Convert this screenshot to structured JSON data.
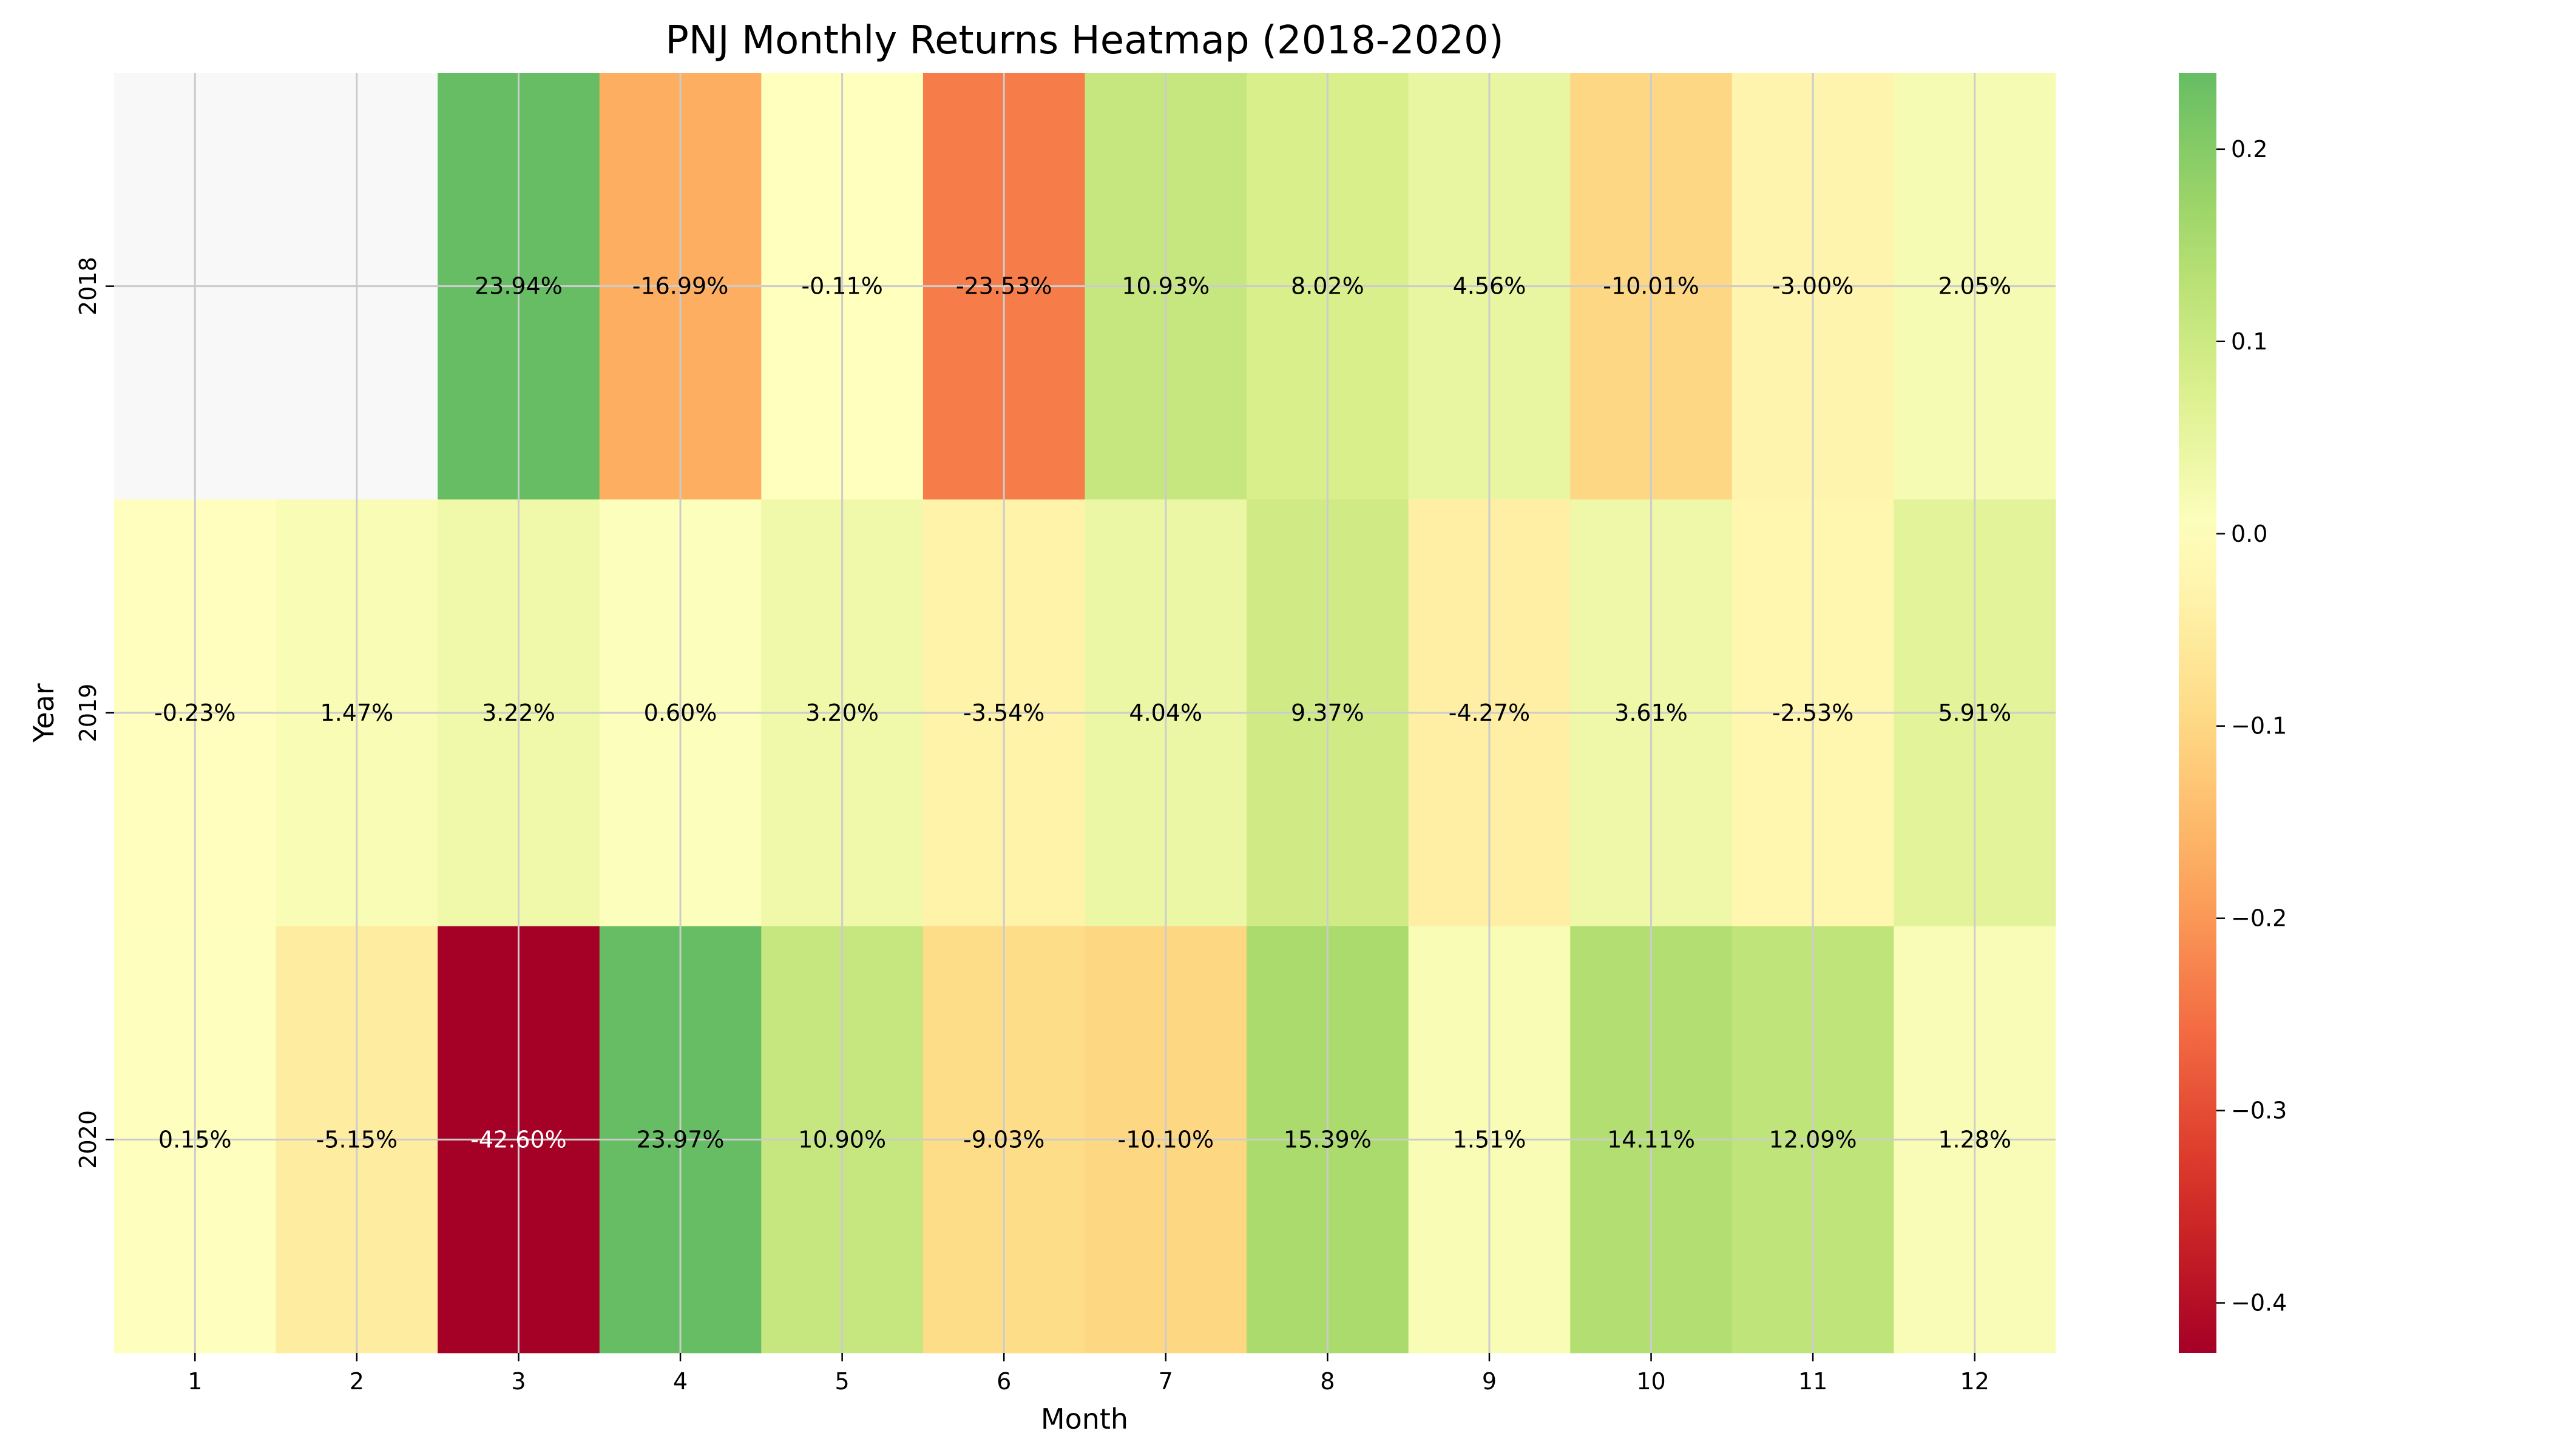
{
  "chart_data": {
    "type": "heatmap",
    "title": "PNJ Monthly Returns Heatmap (2018-2020)",
    "xlabel": "Month",
    "ylabel": "Year",
    "x_categories": [
      "1",
      "2",
      "3",
      "4",
      "5",
      "6",
      "7",
      "8",
      "9",
      "10",
      "11",
      "12"
    ],
    "y_categories": [
      "2018",
      "2019",
      "2020"
    ],
    "values": [
      [
        null,
        null,
        0.2394,
        -0.1699,
        -0.0011,
        -0.2353,
        0.1093,
        0.0802,
        0.0456,
        -0.1001,
        -0.03,
        0.0205
      ],
      [
        -0.0023,
        0.0147,
        0.0322,
        0.006,
        0.032,
        -0.0354,
        0.0404,
        0.0937,
        -0.0427,
        0.0361,
        -0.0253,
        0.0591
      ],
      [
        0.0015,
        -0.0515,
        -0.426,
        0.2397,
        0.109,
        -0.0903,
        -0.101,
        0.1539,
        0.0151,
        0.1411,
        0.1209,
        0.0128
      ]
    ],
    "annotations": [
      [
        "",
        "",
        "23.94%",
        "-16.99%",
        "-0.11%",
        "-23.53%",
        "10.93%",
        "8.02%",
        "4.56%",
        "-10.01%",
        "-3.00%",
        "2.05%"
      ],
      [
        "-0.23%",
        "1.47%",
        "3.22%",
        "0.60%",
        "3.20%",
        "-3.54%",
        "4.04%",
        "9.37%",
        "-4.27%",
        "3.61%",
        "-2.53%",
        "5.91%"
      ],
      [
        "0.15%",
        "-5.15%",
        "-42.60%",
        "23.97%",
        "10.90%",
        "-9.03%",
        "-10.10%",
        "15.39%",
        "1.51%",
        "14.11%",
        "12.09%",
        "1.28%"
      ]
    ],
    "colormap": "RdYlGn",
    "colorbar": {
      "vmin": -0.426,
      "vmax": 0.2397,
      "ticks": [
        0.2,
        0.1,
        0.0,
        -0.1,
        -0.2,
        -0.3,
        -0.4
      ],
      "tick_labels": [
        "0.2",
        "0.1",
        "0.0",
        "−0.1",
        "−0.2",
        "−0.3",
        "−0.4"
      ]
    },
    "grid": true,
    "missing_color": "#f8f8f8"
  }
}
